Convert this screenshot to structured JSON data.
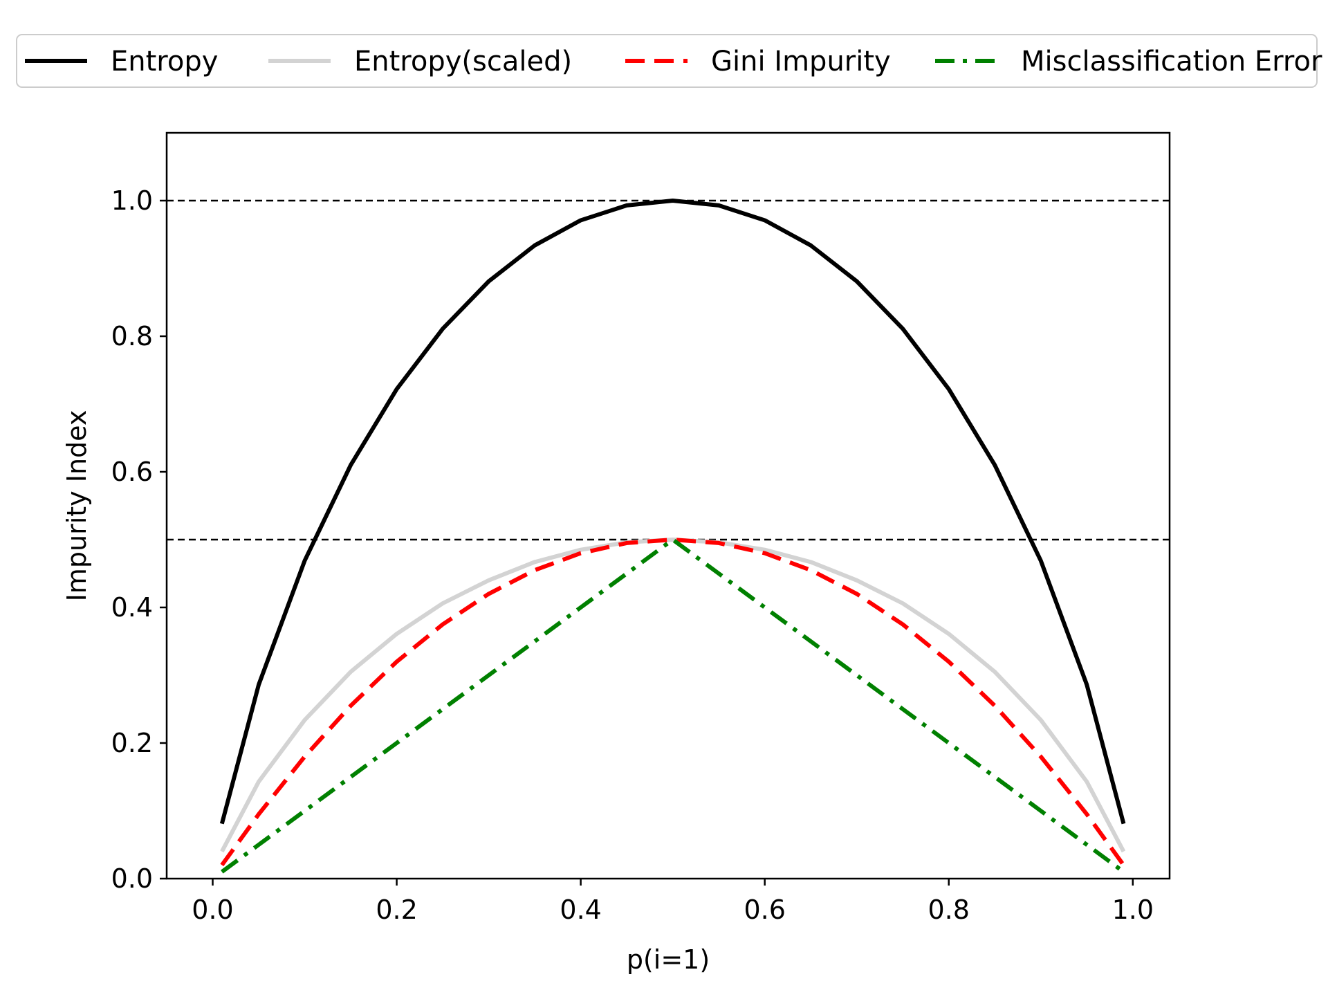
{
  "chart_data": {
    "type": "line",
    "title": "",
    "xlabel": "p(i=1)",
    "ylabel": "Impurity Index",
    "xlim": [
      -0.05,
      1.04
    ],
    "ylim": [
      0.0,
      1.1
    ],
    "xticks": [
      "0.0",
      "0.2",
      "0.4",
      "0.6",
      "0.8",
      "1.0"
    ],
    "xtick_values": [
      0.0,
      0.2,
      0.4,
      0.6,
      0.8,
      1.0
    ],
    "yticks": [
      "0.0",
      "0.2",
      "0.4",
      "0.6",
      "0.8",
      "1.0"
    ],
    "ytick_values": [
      0.0,
      0.2,
      0.4,
      0.6,
      0.8,
      1.0
    ],
    "grid": false,
    "legend_placement": "top, above plot, single row",
    "reference_lines": [
      {
        "y": 0.5,
        "style": "dashed",
        "color": "#000000"
      },
      {
        "y": 1.0,
        "style": "dashed",
        "color": "#000000"
      }
    ],
    "x": [
      0.01,
      0.05,
      0.1,
      0.15,
      0.2,
      0.25,
      0.3,
      0.35,
      0.4,
      0.45,
      0.5,
      0.55,
      0.6,
      0.65,
      0.7,
      0.75,
      0.8,
      0.85,
      0.9,
      0.95,
      0.99
    ],
    "series": [
      {
        "name": "Entropy",
        "color": "#000000",
        "style": "solid",
        "values": [
          0.081,
          0.286,
          0.469,
          0.61,
          0.722,
          0.811,
          0.881,
          0.934,
          0.971,
          0.993,
          1.0,
          0.993,
          0.971,
          0.934,
          0.881,
          0.811,
          0.722,
          0.61,
          0.469,
          0.286,
          0.081
        ]
      },
      {
        "name": "Entropy(scaled)",
        "color": "#d3d3d3",
        "style": "solid",
        "values": [
          0.04,
          0.143,
          0.234,
          0.305,
          0.361,
          0.406,
          0.44,
          0.467,
          0.485,
          0.496,
          0.5,
          0.496,
          0.485,
          0.467,
          0.44,
          0.406,
          0.361,
          0.305,
          0.234,
          0.143,
          0.04
        ]
      },
      {
        "name": "Gini Impurity",
        "color": "#ff0000",
        "style": "dashed",
        "values": [
          0.02,
          0.095,
          0.18,
          0.255,
          0.32,
          0.375,
          0.42,
          0.455,
          0.48,
          0.495,
          0.5,
          0.495,
          0.48,
          0.455,
          0.42,
          0.375,
          0.32,
          0.255,
          0.18,
          0.095,
          0.02
        ]
      },
      {
        "name": "Misclassification Error",
        "color": "#008000",
        "style": "dashdot",
        "values": [
          0.01,
          0.05,
          0.1,
          0.15,
          0.2,
          0.25,
          0.3,
          0.35,
          0.4,
          0.45,
          0.5,
          0.45,
          0.4,
          0.35,
          0.3,
          0.25,
          0.2,
          0.15,
          0.1,
          0.05,
          0.01
        ]
      }
    ]
  }
}
